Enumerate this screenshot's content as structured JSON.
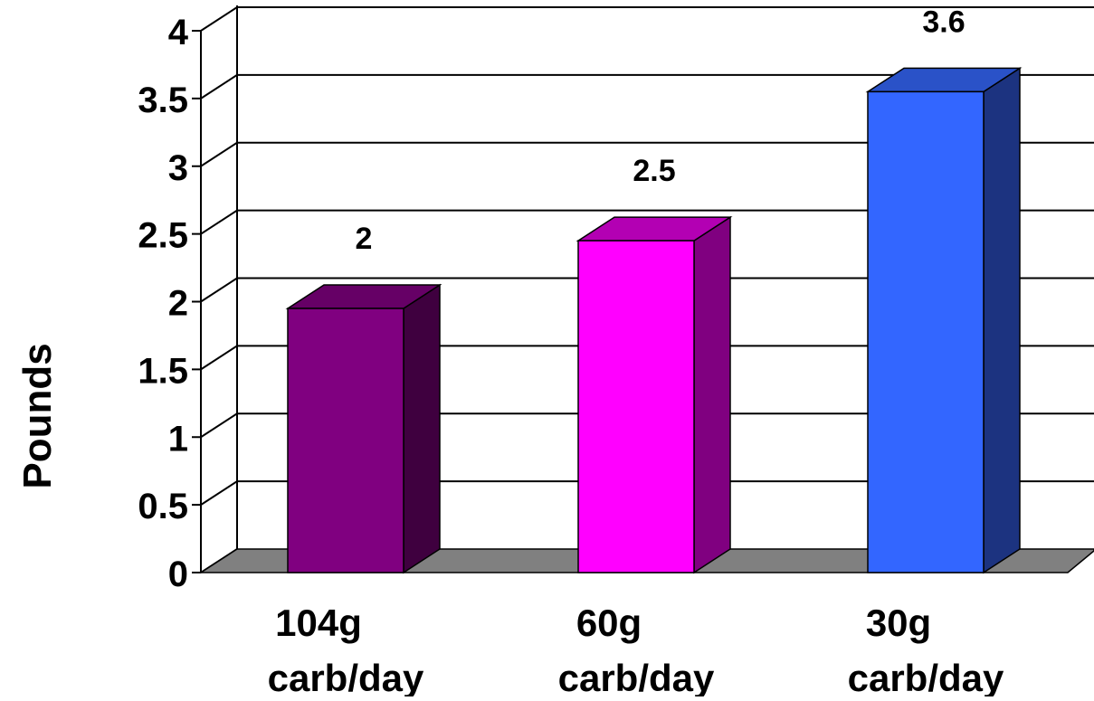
{
  "chart_data": {
    "type": "bar",
    "title": "",
    "xlabel": "",
    "ylabel": "Pounds",
    "ylim": [
      0,
      4
    ],
    "yticks": [
      {
        "value": 0,
        "label": "0"
      },
      {
        "value": 0.5,
        "label": "0.5"
      },
      {
        "value": 1,
        "label": "1"
      },
      {
        "value": 1.5,
        "label": "1.5"
      },
      {
        "value": 2,
        "label": "2"
      },
      {
        "value": 2.5,
        "label": "2.5"
      },
      {
        "value": 3,
        "label": "3"
      },
      {
        "value": 3.5,
        "label": "3.5"
      },
      {
        "value": 4,
        "label": "4"
      }
    ],
    "grid": true,
    "legend": "none",
    "categories": [
      {
        "line1": "104g",
        "line2": "carb/day"
      },
      {
        "line1": "60g",
        "line2": "carb/day"
      },
      {
        "line1": "30g",
        "line2": "carb/day"
      }
    ],
    "values": [
      1.95,
      2.45,
      3.55
    ],
    "data_labels": [
      "2",
      "2.5",
      "3.6"
    ],
    "bar_colors": [
      {
        "front": "#800080",
        "top": "#660066",
        "side": "#3f003f"
      },
      {
        "front": "#ff00ff",
        "top": "#b300b3",
        "side": "#800080"
      },
      {
        "front": "#3366ff",
        "top": "#2a52c8",
        "side": "#1c3380"
      }
    ],
    "floor_color": "#808080"
  }
}
